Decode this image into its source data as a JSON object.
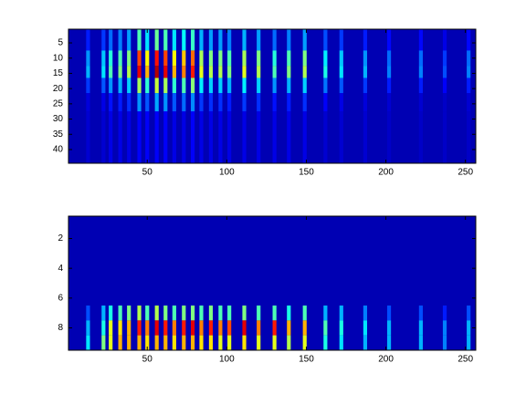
{
  "chart_data": [
    {
      "type": "heatmap",
      "colormap": "jet",
      "clim": [
        0,
        1
      ],
      "background": 0.05,
      "xlim": [
        0.5,
        256.5
      ],
      "ylim": [
        0.5,
        44.5
      ],
      "xticks": [
        50,
        100,
        150,
        200,
        250
      ],
      "yticks": [
        5,
        10,
        15,
        20,
        25,
        30,
        35,
        40
      ],
      "x": [
        12.8,
        22.5,
        27,
        33,
        38.5,
        45,
        50,
        56,
        61.5,
        67,
        73,
        78.6,
        84,
        90,
        96,
        101.6,
        111,
        120,
        130,
        139,
        149,
        162,
        172,
        187,
        202,
        222,
        237,
        252
      ],
      "row_edges": [
        0.5,
        7.5,
        12.5,
        16.5,
        21.5,
        27.5,
        44.5
      ],
      "values": [
        [
          0.15,
          0.27,
          0.3,
          0.18,
          0.09,
          0.08
        ],
        [
          0.18,
          0.32,
          0.35,
          0.21,
          0.1,
          0.08
        ],
        [
          0.23,
          0.41,
          0.45,
          0.27,
          0.14,
          0.1
        ],
        [
          0.25,
          0.45,
          0.5,
          0.3,
          0.15,
          0.1
        ],
        [
          0.28,
          0.5,
          0.55,
          0.33,
          0.17,
          0.1
        ],
        [
          0.45,
          0.81,
          0.9,
          0.54,
          0.27,
          0.12
        ],
        [
          0.35,
          0.63,
          0.7,
          0.42,
          0.21,
          0.12
        ],
        [
          0.48,
          0.86,
          0.95,
          0.57,
          0.29,
          0.12
        ],
        [
          0.45,
          0.81,
          0.9,
          0.54,
          0.27,
          0.12
        ],
        [
          0.35,
          0.63,
          0.7,
          0.42,
          0.21,
          0.1
        ],
        [
          0.38,
          0.68,
          0.75,
          0.45,
          0.23,
          0.1
        ],
        [
          0.43,
          0.77,
          0.85,
          0.51,
          0.26,
          0.12
        ],
        [
          0.3,
          0.54,
          0.6,
          0.36,
          0.18,
          0.1
        ],
        [
          0.28,
          0.5,
          0.55,
          0.33,
          0.17,
          0.1
        ],
        [
          0.28,
          0.5,
          0.55,
          0.33,
          0.17,
          0.1
        ],
        [
          0.25,
          0.45,
          0.5,
          0.3,
          0.15,
          0.1
        ],
        [
          0.3,
          0.54,
          0.6,
          0.36,
          0.18,
          0.1
        ],
        [
          0.28,
          0.5,
          0.55,
          0.33,
          0.17,
          0.1
        ],
        [
          0.23,
          0.41,
          0.45,
          0.27,
          0.14,
          0.1
        ],
        [
          0.25,
          0.45,
          0.5,
          0.3,
          0.15,
          0.1
        ],
        [
          0.28,
          0.5,
          0.55,
          0.33,
          0.17,
          0.1
        ],
        [
          0.2,
          0.36,
          0.4,
          0.24,
          0.12,
          0.08
        ],
        [
          0.18,
          0.32,
          0.35,
          0.21,
          0.1,
          0.08
        ],
        [
          0.15,
          0.27,
          0.3,
          0.18,
          0.09,
          0.08
        ],
        [
          0.13,
          0.23,
          0.25,
          0.15,
          0.08,
          0.07
        ],
        [
          0.13,
          0.23,
          0.25,
          0.15,
          0.08,
          0.07
        ],
        [
          0.1,
          0.18,
          0.2,
          0.12,
          0.07,
          0.07
        ],
        [
          0.13,
          0.23,
          0.25,
          0.15,
          0.08,
          0.07
        ]
      ]
    },
    {
      "type": "heatmap",
      "colormap": "jet",
      "clim": [
        0,
        1
      ],
      "background": 0.05,
      "xlim": [
        0.5,
        256.5
      ],
      "ylim": [
        0.5,
        9.5
      ],
      "xticks": [
        50,
        100,
        150,
        200,
        250
      ],
      "yticks": [
        2,
        4,
        6,
        8
      ],
      "x": [
        12.8,
        22.5,
        27,
        33,
        38.5,
        45,
        50,
        56,
        61.5,
        67,
        73,
        78.6,
        84,
        90,
        96,
        101.6,
        111,
        120,
        130,
        139,
        149,
        162,
        172,
        187,
        202,
        222,
        237,
        252
      ],
      "row_edges": [
        6.5,
        7.5,
        8.5,
        9.5
      ],
      "values": [
        [
          0.2,
          0.3,
          0.35
        ],
        [
          0.3,
          0.4,
          0.5
        ],
        [
          0.4,
          0.6,
          0.6
        ],
        [
          0.45,
          0.65,
          0.7
        ],
        [
          0.5,
          0.7,
          0.7
        ],
        [
          0.55,
          0.85,
          0.7
        ],
        [
          0.45,
          0.75,
          0.65
        ],
        [
          0.55,
          0.9,
          0.7
        ],
        [
          0.5,
          0.85,
          0.7
        ],
        [
          0.45,
          0.75,
          0.65
        ],
        [
          0.5,
          0.85,
          0.7
        ],
        [
          0.5,
          0.9,
          0.7
        ],
        [
          0.45,
          0.75,
          0.65
        ],
        [
          0.5,
          0.85,
          0.65
        ],
        [
          0.45,
          0.75,
          0.6
        ],
        [
          0.45,
          0.8,
          0.6
        ],
        [
          0.5,
          0.9,
          0.65
        ],
        [
          0.45,
          0.75,
          0.6
        ],
        [
          0.45,
          0.85,
          0.6
        ],
        [
          0.4,
          0.7,
          0.55
        ],
        [
          0.45,
          0.7,
          0.6
        ],
        [
          0.3,
          0.45,
          0.4
        ],
        [
          0.3,
          0.4,
          0.35
        ],
        [
          0.25,
          0.35,
          0.3
        ],
        [
          0.2,
          0.3,
          0.3
        ],
        [
          0.2,
          0.3,
          0.3
        ],
        [
          0.15,
          0.25,
          0.25
        ],
        [
          0.2,
          0.3,
          0.3
        ]
      ]
    }
  ]
}
